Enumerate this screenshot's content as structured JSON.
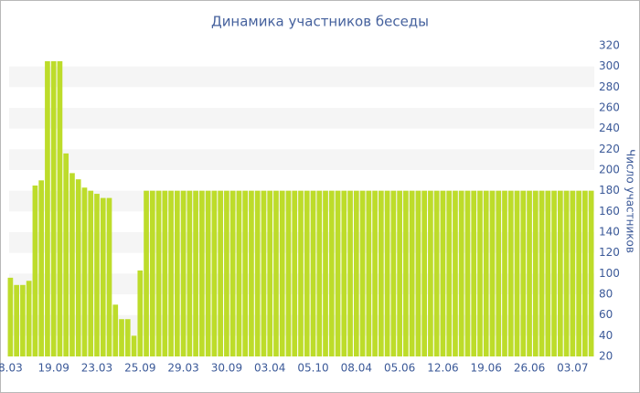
{
  "chart_data": {
    "type": "bar",
    "title": "Динамика участников беседы",
    "y_axis_label": "Число участников",
    "categories": [
      "8.03",
      null,
      null,
      null,
      null,
      null,
      null,
      "19.09",
      null,
      null,
      null,
      null,
      null,
      null,
      "23.03",
      null,
      null,
      null,
      null,
      null,
      null,
      "25.09",
      null,
      null,
      null,
      null,
      null,
      null,
      "29.03",
      null,
      null,
      null,
      null,
      null,
      null,
      "30.09",
      null,
      null,
      null,
      null,
      null,
      null,
      "03.04",
      null,
      null,
      null,
      null,
      null,
      null,
      "05.10",
      null,
      null,
      null,
      null,
      null,
      null,
      "08.04",
      null,
      null,
      null,
      null,
      null,
      null,
      "05.06",
      null,
      null,
      null,
      null,
      null,
      null,
      "12.06",
      null,
      null,
      null,
      null,
      null,
      null,
      "19.06",
      null,
      null,
      null,
      null,
      null,
      null,
      "26.06",
      null,
      null,
      null,
      null,
      null,
      null,
      "03.07",
      null,
      null,
      null
    ],
    "values": [
      96,
      89,
      89,
      93,
      185,
      190,
      305,
      305,
      305,
      216,
      197,
      191,
      183,
      180,
      177,
      173,
      173,
      70,
      56,
      56,
      40,
      103,
      180,
      180,
      180,
      180,
      180,
      180,
      180,
      180,
      180,
      180,
      180,
      180,
      180,
      180,
      180,
      180,
      180,
      180,
      180,
      180,
      180,
      180,
      180,
      180,
      180,
      180,
      180,
      180,
      180,
      180,
      180,
      180,
      180,
      180,
      180,
      180,
      180,
      180,
      180,
      180,
      180,
      180,
      180,
      180,
      180,
      180,
      180,
      180,
      180,
      180,
      180,
      180,
      180,
      180,
      180,
      180,
      180,
      180,
      180,
      180,
      180,
      180,
      180,
      180,
      180,
      180,
      180,
      180,
      180,
      180,
      180,
      180,
      180
    ],
    "color": "#bddc2a",
    "ylim": [
      20,
      320
    ],
    "yticks": [
      20,
      40,
      60,
      80,
      100,
      120,
      140,
      160,
      180,
      200,
      220,
      240,
      260,
      280,
      300,
      320
    ],
    "grid": "bands"
  }
}
